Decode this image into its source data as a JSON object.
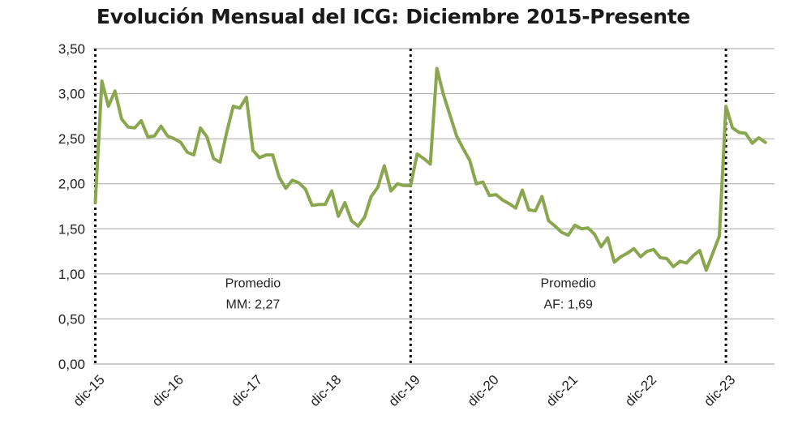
{
  "chart_data": {
    "type": "line",
    "title": "Evolución Mensual del ICG: Diciembre 2015-Presente",
    "xlabel": "",
    "ylabel": "",
    "ylim": [
      0,
      3.5
    ],
    "y_ticks": [
      "0,00",
      "0,50",
      "1,00",
      "1,50",
      "2,00",
      "2,50",
      "3,00",
      "3,50"
    ],
    "x_ticks": [
      "dic-15",
      "dic-16",
      "dic-17",
      "dic-18",
      "dic-19",
      "dic-20",
      "dic-21",
      "dic-22",
      "dic-23"
    ],
    "grid": true,
    "line_color": "#8aa64e",
    "vlines_at_month": [
      0,
      48,
      96
    ],
    "annotations": [
      {
        "line1": "Promedio",
        "line2": "MM: 2,27",
        "at_month": 24,
        "y": 0.85
      },
      {
        "line1": "Promedio",
        "line2": "AF: 1,69",
        "at_month": 72,
        "y": 0.85
      }
    ],
    "series": [
      {
        "values": [
          1.79,
          3.14,
          2.86,
          3.03,
          2.72,
          2.63,
          2.62,
          2.7,
          2.52,
          2.53,
          2.64,
          2.53,
          2.5,
          2.46,
          2.35,
          2.32,
          2.62,
          2.52,
          2.28,
          2.24,
          2.57,
          2.86,
          2.84,
          2.96,
          2.37,
          2.29,
          2.32,
          2.32,
          2.07,
          1.95,
          2.04,
          2.01,
          1.94,
          1.76,
          1.77,
          1.77,
          1.92,
          1.64,
          1.79,
          1.59,
          1.53,
          1.63,
          1.86,
          1.96,
          2.2,
          1.92,
          2.0,
          1.98,
          1.98,
          2.33,
          2.28,
          2.22,
          3.28,
          2.99,
          2.76,
          2.53,
          2.39,
          2.26,
          2.0,
          2.02,
          1.87,
          1.88,
          1.82,
          1.78,
          1.73,
          1.93,
          1.71,
          1.7,
          1.86,
          1.59,
          1.53,
          1.46,
          1.43,
          1.54,
          1.5,
          1.51,
          1.44,
          1.3,
          1.4,
          1.13,
          1.19,
          1.23,
          1.28,
          1.19,
          1.25,
          1.27,
          1.18,
          1.17,
          1.08,
          1.14,
          1.12,
          1.2,
          1.26,
          1.04,
          1.23,
          1.42,
          2.86,
          2.62,
          2.57,
          2.56,
          2.45,
          2.51,
          2.46
        ]
      }
    ]
  }
}
